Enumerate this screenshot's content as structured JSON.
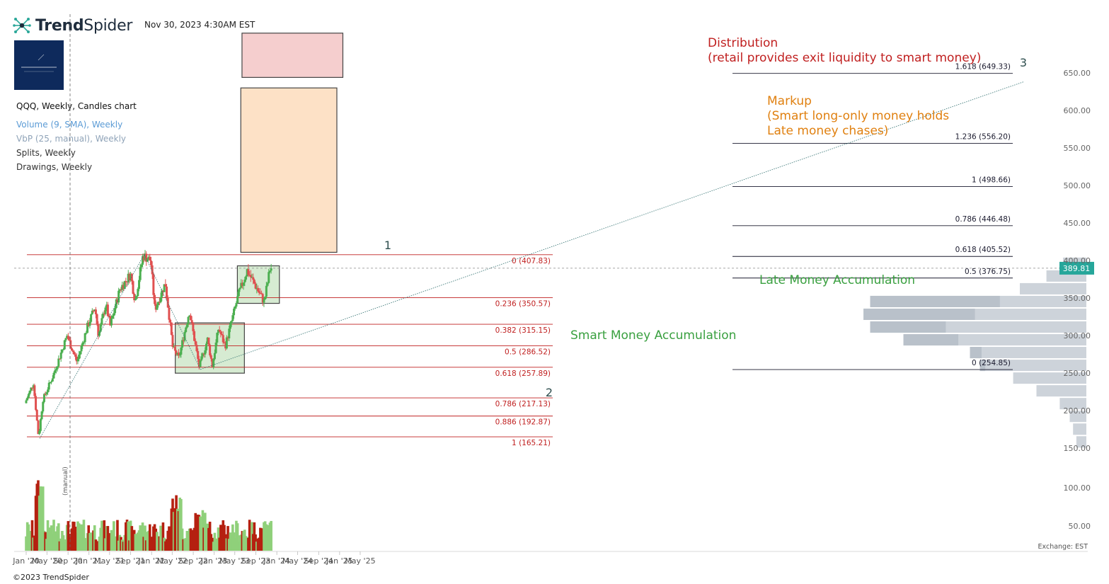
{
  "header": {
    "brand_bold": "Trend",
    "brand_light": "Spider",
    "timestamp": "Nov 30, 2023 4:30AM EST",
    "copyright": "©2023 TrendSpider"
  },
  "legend": {
    "main": "QQQ, Weekly, Candles chart",
    "volume": "Volume (9, SMA), Weekly",
    "vbp": "VbP (25, manual), Weekly",
    "splits": "Splits, Weekly",
    "drawings": "Drawings, Weekly"
  },
  "colors": {
    "up": "#4caf50",
    "down": "#e05050",
    "vol_up": "#8fd07a",
    "vol_down": "#b52010",
    "fib_left": "#c02020",
    "fib_right": "#1a1a2e",
    "price_tag": "#26a69a",
    "vbp": "#cdd3da"
  },
  "chart_data": {
    "type": "candlestick",
    "symbol": "QQQ",
    "interval": "Weekly",
    "xlabel": "",
    "ylabel": "",
    "ylim": [
      150,
      650
    ],
    "last_price": 389.81,
    "last_price_label": "389.81",
    "y_ticks": [
      "650.00",
      "600.00",
      "550.00",
      "500.00",
      "450.00",
      "400.00",
      "350.00",
      "300.00",
      "250.00",
      "200.00",
      "150.00"
    ],
    "volume_ticks": [
      "100.00",
      "50.00"
    ],
    "x_ticks": [
      "Jan '20",
      "May '20",
      "Sep '20",
      "Jan '21",
      "May '21",
      "Sep '21",
      "Jan '22",
      "May '22",
      "Sep '22",
      "Jan '23",
      "May '23",
      "Sep '23",
      "Jan '24",
      "May '24",
      "Sep '24",
      "Jan '25",
      "May '25"
    ],
    "exchange_label": "Exchange: EST",
    "price_path": [
      [
        "2020-01-01",
        210
      ],
      [
        "2020-02-19",
        237
      ],
      [
        "2020-03-20",
        165
      ],
      [
        "2020-04-15",
        215
      ],
      [
        "2020-06-10",
        245
      ],
      [
        "2020-09-02",
        300
      ],
      [
        "2020-10-30",
        265
      ],
      [
        "2020-12-31",
        313
      ],
      [
        "2021-02-12",
        338
      ],
      [
        "2021-03-05",
        300
      ],
      [
        "2021-04-16",
        342
      ],
      [
        "2021-05-12",
        313
      ],
      [
        "2021-07-07",
        362
      ],
      [
        "2021-09-07",
        382
      ],
      [
        "2021-10-04",
        346
      ],
      [
        "2021-11-19",
        407
      ],
      [
        "2022-01-03",
        400
      ],
      [
        "2022-01-27",
        335
      ],
      [
        "2022-03-29",
        370
      ],
      [
        "2022-05-12",
        283
      ],
      [
        "2022-06-16",
        270
      ],
      [
        "2022-08-16",
        333
      ],
      [
        "2022-10-13",
        258
      ],
      [
        "2022-11-30",
        295
      ],
      [
        "2022-12-28",
        260
      ],
      [
        "2023-02-02",
        310
      ],
      [
        "2023-03-13",
        286
      ],
      [
        "2023-05-30",
        355
      ],
      [
        "2023-07-19",
        387
      ],
      [
        "2023-10-26",
        345
      ],
      [
        "2023-11-30",
        390
      ]
    ],
    "fib_left": [
      {
        "label": "0 (407.83)",
        "value": 407.83
      },
      {
        "label": "0.236 (350.57)",
        "value": 350.57
      },
      {
        "label": "0.382 (315.15)",
        "value": 315.15
      },
      {
        "label": "0.5 (286.52)",
        "value": 286.52
      },
      {
        "label": "0.618 (257.89)",
        "value": 257.89
      },
      {
        "label": "0.786 (217.13)",
        "value": 217.13
      },
      {
        "label": "0.886 (192.87)",
        "value": 192.87
      },
      {
        "label": "1 (165.21)",
        "value": 165.21
      }
    ],
    "fib_right": [
      {
        "label": "1.618 (649.33)",
        "value": 649.33
      },
      {
        "label": "1.236 (556.20)",
        "value": 556.2
      },
      {
        "label": "1 (498.66)",
        "value": 498.66
      },
      {
        "label": "0.786 (446.48)",
        "value": 446.48
      },
      {
        "label": "0.618 (405.52)",
        "value": 405.52
      },
      {
        "label": "0.5 (376.75)",
        "value": 376.75
      },
      {
        "label": "0 (254.85)",
        "value": 254.85
      }
    ],
    "wave_labels": [
      "1",
      "2",
      "3"
    ],
    "zones": [
      {
        "label": "Smart Money Accumulation",
        "x0": "2022-05-19",
        "x1": "2023-06-26",
        "y0": 250,
        "y1": 317,
        "fill": "#d4ead0",
        "stroke": "#3a3a3a",
        "text_color": "#3aa040"
      },
      {
        "label": "Late Money Accumulation",
        "x0": "2023-05-16",
        "x1": "2024-01-16",
        "y0": 343,
        "y1": 393,
        "fill": "#d4ead0",
        "stroke": "#3a3a3a",
        "text_color": "#3aa040"
      },
      {
        "label": "Markup\n(Smart long-only money holds\nLate money chases)",
        "x0": "2023-06-05",
        "x1": "2024-12-16",
        "y0": 411,
        "y1": 630,
        "fill": "#fde0c3",
        "stroke": "#3a3a3a",
        "text_color": "#e08010"
      },
      {
        "label": "Distribution\n(retail provides exit liquidity to smart money)",
        "x0": "2023-06-12",
        "x1": "2025-01-20",
        "y0": 644,
        "y1": 703,
        "fill": "#f5cccc",
        "stroke": "#3a3a3a",
        "text_color": "#c02020"
      }
    ],
    "split_marker": "(manual)"
  }
}
